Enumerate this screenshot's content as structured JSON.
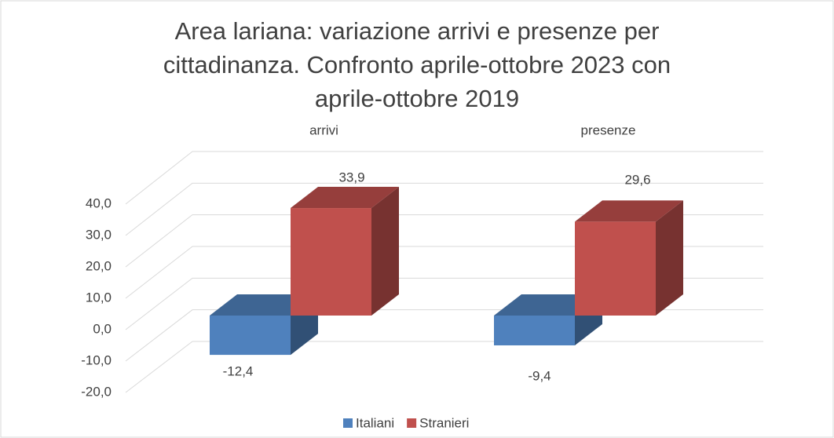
{
  "chart_data": {
    "type": "bar3d",
    "title": "Area lariana: variazione arrivi e presenze per cittadinanza. Confronto aprile-ottobre 2023 con aprile-ottobre 2019",
    "categories": [
      "arrivi",
      "presenze"
    ],
    "series": [
      {
        "name": "Italiani",
        "color": "#4f81bd",
        "values": [
          -12.4,
          -9.4
        ],
        "value_labels": [
          "-12,4",
          "-9,4"
        ]
      },
      {
        "name": "Stranieri",
        "color": "#c0504d",
        "values": [
          33.9,
          29.6
        ],
        "value_labels": [
          "33,9",
          "29,6"
        ]
      }
    ],
    "ylim": [
      -20,
      40
    ],
    "yticks": [
      {
        "value": -20,
        "label": "-20,0"
      },
      {
        "value": -10,
        "label": "-10,0"
      },
      {
        "value": 0,
        "label": "0,0"
      },
      {
        "value": 10,
        "label": "10,0"
      },
      {
        "value": 20,
        "label": "20,0"
      },
      {
        "value": 30,
        "label": "30,0"
      },
      {
        "value": 40,
        "label": "40,0"
      }
    ],
    "grid": true,
    "legend": "bottom"
  }
}
